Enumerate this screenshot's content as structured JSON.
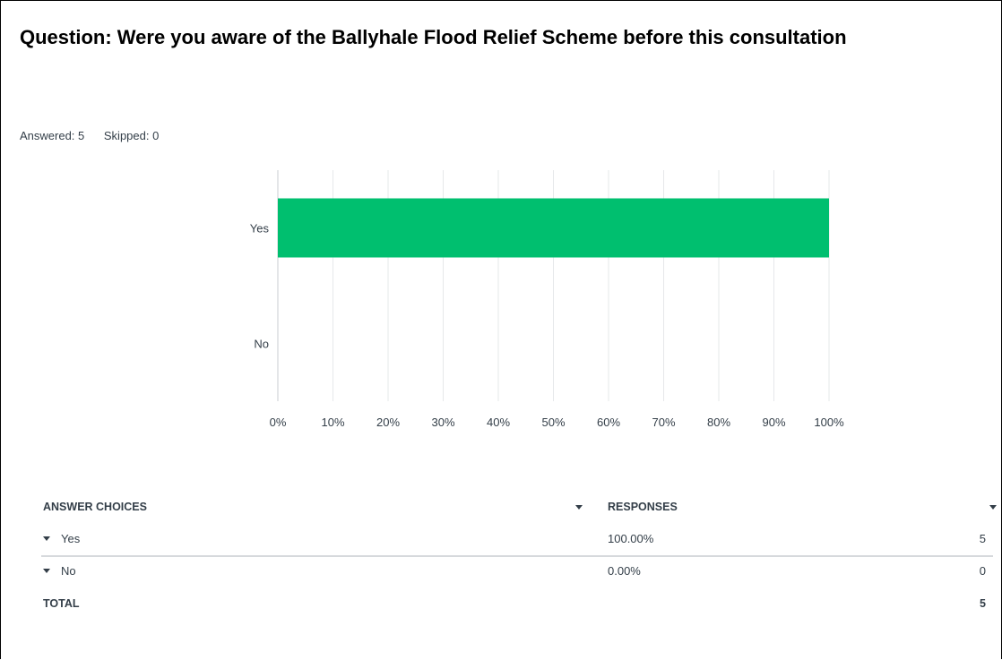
{
  "question": {
    "text": "Question: Were you aware of the Ballyhale Flood Relief Scheme before this consultation"
  },
  "stats": {
    "answered": "Answered: 5",
    "skipped": "Skipped: 0"
  },
  "colors": {
    "bar": "#00bf6f",
    "grid": "#e6e8ea",
    "axis": "#c9ccd0"
  },
  "chart_data": {
    "type": "bar",
    "orientation": "horizontal",
    "categories": [
      "Yes",
      "No"
    ],
    "values": [
      100,
      0
    ],
    "xlim": [
      0,
      100
    ],
    "xticks": [
      "0%",
      "10%",
      "20%",
      "30%",
      "40%",
      "50%",
      "60%",
      "70%",
      "80%",
      "90%",
      "100%"
    ],
    "grid": true,
    "title": "",
    "xlabel": "",
    "ylabel": ""
  },
  "table": {
    "headers": {
      "choices": "ANSWER CHOICES",
      "responses": "RESPONSES"
    },
    "rows": [
      {
        "choice": "Yes",
        "percent": "100.00%",
        "count": "5"
      },
      {
        "choice": "No",
        "percent": "0.00%",
        "count": "0"
      }
    ],
    "total": {
      "label": "TOTAL",
      "count": "5"
    }
  }
}
